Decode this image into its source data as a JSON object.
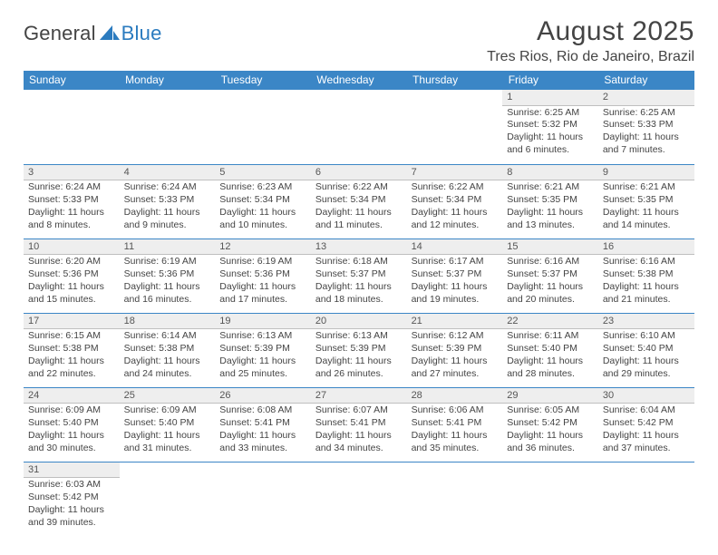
{
  "logo": {
    "text1": "General",
    "text2": "Blue"
  },
  "title": "August 2025",
  "location": "Tres Rios, Rio de Janeiro, Brazil",
  "colors": {
    "header_bg": "#3b86c6",
    "header_text": "#ffffff",
    "grid_line": "#3b86c6",
    "daynum_bg": "#eeeeee",
    "daynum_border": "#bfbfbf",
    "text": "#444444",
    "logo_blue": "#2b7bbf"
  },
  "weekdays": [
    "Sunday",
    "Monday",
    "Tuesday",
    "Wednesday",
    "Thursday",
    "Friday",
    "Saturday"
  ],
  "weeks": [
    [
      null,
      null,
      null,
      null,
      null,
      {
        "n": "1",
        "sr": "Sunrise: 6:25 AM",
        "ss": "Sunset: 5:32 PM",
        "d1": "Daylight: 11 hours",
        "d2": "and 6 minutes."
      },
      {
        "n": "2",
        "sr": "Sunrise: 6:25 AM",
        "ss": "Sunset: 5:33 PM",
        "d1": "Daylight: 11 hours",
        "d2": "and 7 minutes."
      }
    ],
    [
      {
        "n": "3",
        "sr": "Sunrise: 6:24 AM",
        "ss": "Sunset: 5:33 PM",
        "d1": "Daylight: 11 hours",
        "d2": "and 8 minutes."
      },
      {
        "n": "4",
        "sr": "Sunrise: 6:24 AM",
        "ss": "Sunset: 5:33 PM",
        "d1": "Daylight: 11 hours",
        "d2": "and 9 minutes."
      },
      {
        "n": "5",
        "sr": "Sunrise: 6:23 AM",
        "ss": "Sunset: 5:34 PM",
        "d1": "Daylight: 11 hours",
        "d2": "and 10 minutes."
      },
      {
        "n": "6",
        "sr": "Sunrise: 6:22 AM",
        "ss": "Sunset: 5:34 PM",
        "d1": "Daylight: 11 hours",
        "d2": "and 11 minutes."
      },
      {
        "n": "7",
        "sr": "Sunrise: 6:22 AM",
        "ss": "Sunset: 5:34 PM",
        "d1": "Daylight: 11 hours",
        "d2": "and 12 minutes."
      },
      {
        "n": "8",
        "sr": "Sunrise: 6:21 AM",
        "ss": "Sunset: 5:35 PM",
        "d1": "Daylight: 11 hours",
        "d2": "and 13 minutes."
      },
      {
        "n": "9",
        "sr": "Sunrise: 6:21 AM",
        "ss": "Sunset: 5:35 PM",
        "d1": "Daylight: 11 hours",
        "d2": "and 14 minutes."
      }
    ],
    [
      {
        "n": "10",
        "sr": "Sunrise: 6:20 AM",
        "ss": "Sunset: 5:36 PM",
        "d1": "Daylight: 11 hours",
        "d2": "and 15 minutes."
      },
      {
        "n": "11",
        "sr": "Sunrise: 6:19 AM",
        "ss": "Sunset: 5:36 PM",
        "d1": "Daylight: 11 hours",
        "d2": "and 16 minutes."
      },
      {
        "n": "12",
        "sr": "Sunrise: 6:19 AM",
        "ss": "Sunset: 5:36 PM",
        "d1": "Daylight: 11 hours",
        "d2": "and 17 minutes."
      },
      {
        "n": "13",
        "sr": "Sunrise: 6:18 AM",
        "ss": "Sunset: 5:37 PM",
        "d1": "Daylight: 11 hours",
        "d2": "and 18 minutes."
      },
      {
        "n": "14",
        "sr": "Sunrise: 6:17 AM",
        "ss": "Sunset: 5:37 PM",
        "d1": "Daylight: 11 hours",
        "d2": "and 19 minutes."
      },
      {
        "n": "15",
        "sr": "Sunrise: 6:16 AM",
        "ss": "Sunset: 5:37 PM",
        "d1": "Daylight: 11 hours",
        "d2": "and 20 minutes."
      },
      {
        "n": "16",
        "sr": "Sunrise: 6:16 AM",
        "ss": "Sunset: 5:38 PM",
        "d1": "Daylight: 11 hours",
        "d2": "and 21 minutes."
      }
    ],
    [
      {
        "n": "17",
        "sr": "Sunrise: 6:15 AM",
        "ss": "Sunset: 5:38 PM",
        "d1": "Daylight: 11 hours",
        "d2": "and 22 minutes."
      },
      {
        "n": "18",
        "sr": "Sunrise: 6:14 AM",
        "ss": "Sunset: 5:38 PM",
        "d1": "Daylight: 11 hours",
        "d2": "and 24 minutes."
      },
      {
        "n": "19",
        "sr": "Sunrise: 6:13 AM",
        "ss": "Sunset: 5:39 PM",
        "d1": "Daylight: 11 hours",
        "d2": "and 25 minutes."
      },
      {
        "n": "20",
        "sr": "Sunrise: 6:13 AM",
        "ss": "Sunset: 5:39 PM",
        "d1": "Daylight: 11 hours",
        "d2": "and 26 minutes."
      },
      {
        "n": "21",
        "sr": "Sunrise: 6:12 AM",
        "ss": "Sunset: 5:39 PM",
        "d1": "Daylight: 11 hours",
        "d2": "and 27 minutes."
      },
      {
        "n": "22",
        "sr": "Sunrise: 6:11 AM",
        "ss": "Sunset: 5:40 PM",
        "d1": "Daylight: 11 hours",
        "d2": "and 28 minutes."
      },
      {
        "n": "23",
        "sr": "Sunrise: 6:10 AM",
        "ss": "Sunset: 5:40 PM",
        "d1": "Daylight: 11 hours",
        "d2": "and 29 minutes."
      }
    ],
    [
      {
        "n": "24",
        "sr": "Sunrise: 6:09 AM",
        "ss": "Sunset: 5:40 PM",
        "d1": "Daylight: 11 hours",
        "d2": "and 30 minutes."
      },
      {
        "n": "25",
        "sr": "Sunrise: 6:09 AM",
        "ss": "Sunset: 5:40 PM",
        "d1": "Daylight: 11 hours",
        "d2": "and 31 minutes."
      },
      {
        "n": "26",
        "sr": "Sunrise: 6:08 AM",
        "ss": "Sunset: 5:41 PM",
        "d1": "Daylight: 11 hours",
        "d2": "and 33 minutes."
      },
      {
        "n": "27",
        "sr": "Sunrise: 6:07 AM",
        "ss": "Sunset: 5:41 PM",
        "d1": "Daylight: 11 hours",
        "d2": "and 34 minutes."
      },
      {
        "n": "28",
        "sr": "Sunrise: 6:06 AM",
        "ss": "Sunset: 5:41 PM",
        "d1": "Daylight: 11 hours",
        "d2": "and 35 minutes."
      },
      {
        "n": "29",
        "sr": "Sunrise: 6:05 AM",
        "ss": "Sunset: 5:42 PM",
        "d1": "Daylight: 11 hours",
        "d2": "and 36 minutes."
      },
      {
        "n": "30",
        "sr": "Sunrise: 6:04 AM",
        "ss": "Sunset: 5:42 PM",
        "d1": "Daylight: 11 hours",
        "d2": "and 37 minutes."
      }
    ],
    [
      {
        "n": "31",
        "sr": "Sunrise: 6:03 AM",
        "ss": "Sunset: 5:42 PM",
        "d1": "Daylight: 11 hours",
        "d2": "and 39 minutes."
      },
      null,
      null,
      null,
      null,
      null,
      null
    ]
  ]
}
